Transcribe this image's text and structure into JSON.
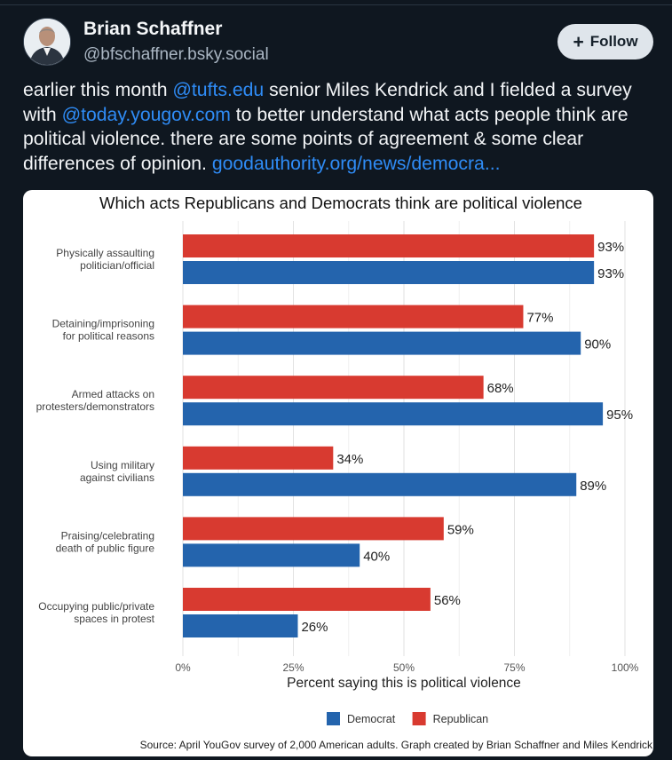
{
  "post": {
    "author_name": "Brian Schaffner",
    "author_handle": "@bfschaffner.bsky.social",
    "follow_label": "Follow",
    "text_parts": [
      {
        "text": "earlier this month ",
        "link": false
      },
      {
        "text": "@tufts.edu",
        "link": true
      },
      {
        "text": " senior Miles Kendrick and I fielded a survey with ",
        "link": false
      },
      {
        "text": "@today.yougov.com",
        "link": true
      },
      {
        "text": " to better understand what acts people think are political violence. there are some points of agreement & some clear differences of opinion. ",
        "link": false
      },
      {
        "text": "goodauthority.org/news/democra...",
        "link": true
      }
    ],
    "link_color": "#2f8cf6"
  },
  "chart_data": {
    "type": "bar",
    "orientation": "horizontal",
    "title": "Which acts Republicans and Democrats think are political violence",
    "categories": [
      [
        "Physically assaulting",
        "politician/official"
      ],
      [
        "Detaining/imprisoning",
        "for political reasons"
      ],
      [
        "Armed attacks on",
        "protesters/demonstrators"
      ],
      [
        "Using military",
        "against civilians"
      ],
      [
        "Praising/celebrating",
        "death of public figure"
      ],
      [
        "Occupying public/private",
        "spaces in protest"
      ]
    ],
    "series": [
      {
        "name": "Republican",
        "color": "#d83a30",
        "values": [
          93,
          77,
          68,
          34,
          59,
          56
        ]
      },
      {
        "name": "Democrat",
        "color": "#2464ad",
        "values": [
          93,
          90,
          95,
          89,
          40,
          26
        ]
      }
    ],
    "legend_order": [
      "Democrat",
      "Republican"
    ],
    "xlim": [
      0,
      100
    ],
    "xticks": [
      "0%",
      "25%",
      "50%",
      "75%",
      "100%"
    ],
    "xlabel": "Percent saying this is political violence",
    "value_suffix": "%",
    "grid": true,
    "legend_position": "bottom",
    "source": "Source: April YouGov survey of 2,000 American adults. Graph created by Brian Schaffner and Miles Kendrick."
  }
}
